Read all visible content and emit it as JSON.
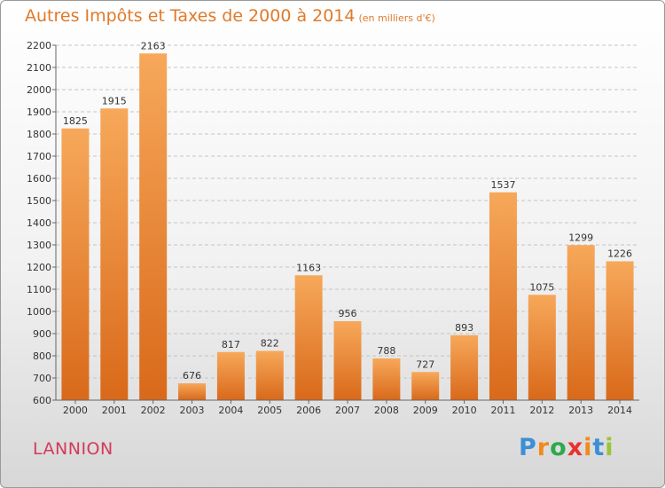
{
  "title": "Autres Impôts et Taxes de 2000 à 2014",
  "unit_note": "(en milliers d'€)",
  "city": "LANNION",
  "logo": {
    "letters": [
      "P",
      "r",
      "o",
      "x",
      "i",
      "t",
      "i"
    ],
    "colors": [
      "#3c8fd6",
      "#f08a1c",
      "#2fa84f",
      "#e8322f",
      "#f08a1c",
      "#3c8fd6",
      "#9ac43a"
    ]
  },
  "colors": {
    "bar_light": "#f7a85a",
    "bar_dark": "#d9691a",
    "title": "#e07a2a",
    "city": "#d43a5a"
  },
  "chart_data": {
    "type": "bar",
    "title": "Autres Impôts et Taxes de 2000 à 2014",
    "categories": [
      "2000",
      "2001",
      "2002",
      "2003",
      "2004",
      "2005",
      "2006",
      "2007",
      "2008",
      "2009",
      "2010",
      "2011",
      "2012",
      "2013",
      "2014"
    ],
    "values": [
      1825,
      1915,
      2163,
      676,
      817,
      822,
      1163,
      956,
      788,
      727,
      893,
      1537,
      1075,
      1299,
      1226
    ],
    "ylim": [
      600,
      2200
    ],
    "yticks": [
      600,
      700,
      800,
      900,
      1000,
      1100,
      1200,
      1300,
      1400,
      1500,
      1600,
      1700,
      1800,
      1900,
      2000,
      2100,
      2200
    ],
    "grid": true,
    "legend": "none"
  }
}
